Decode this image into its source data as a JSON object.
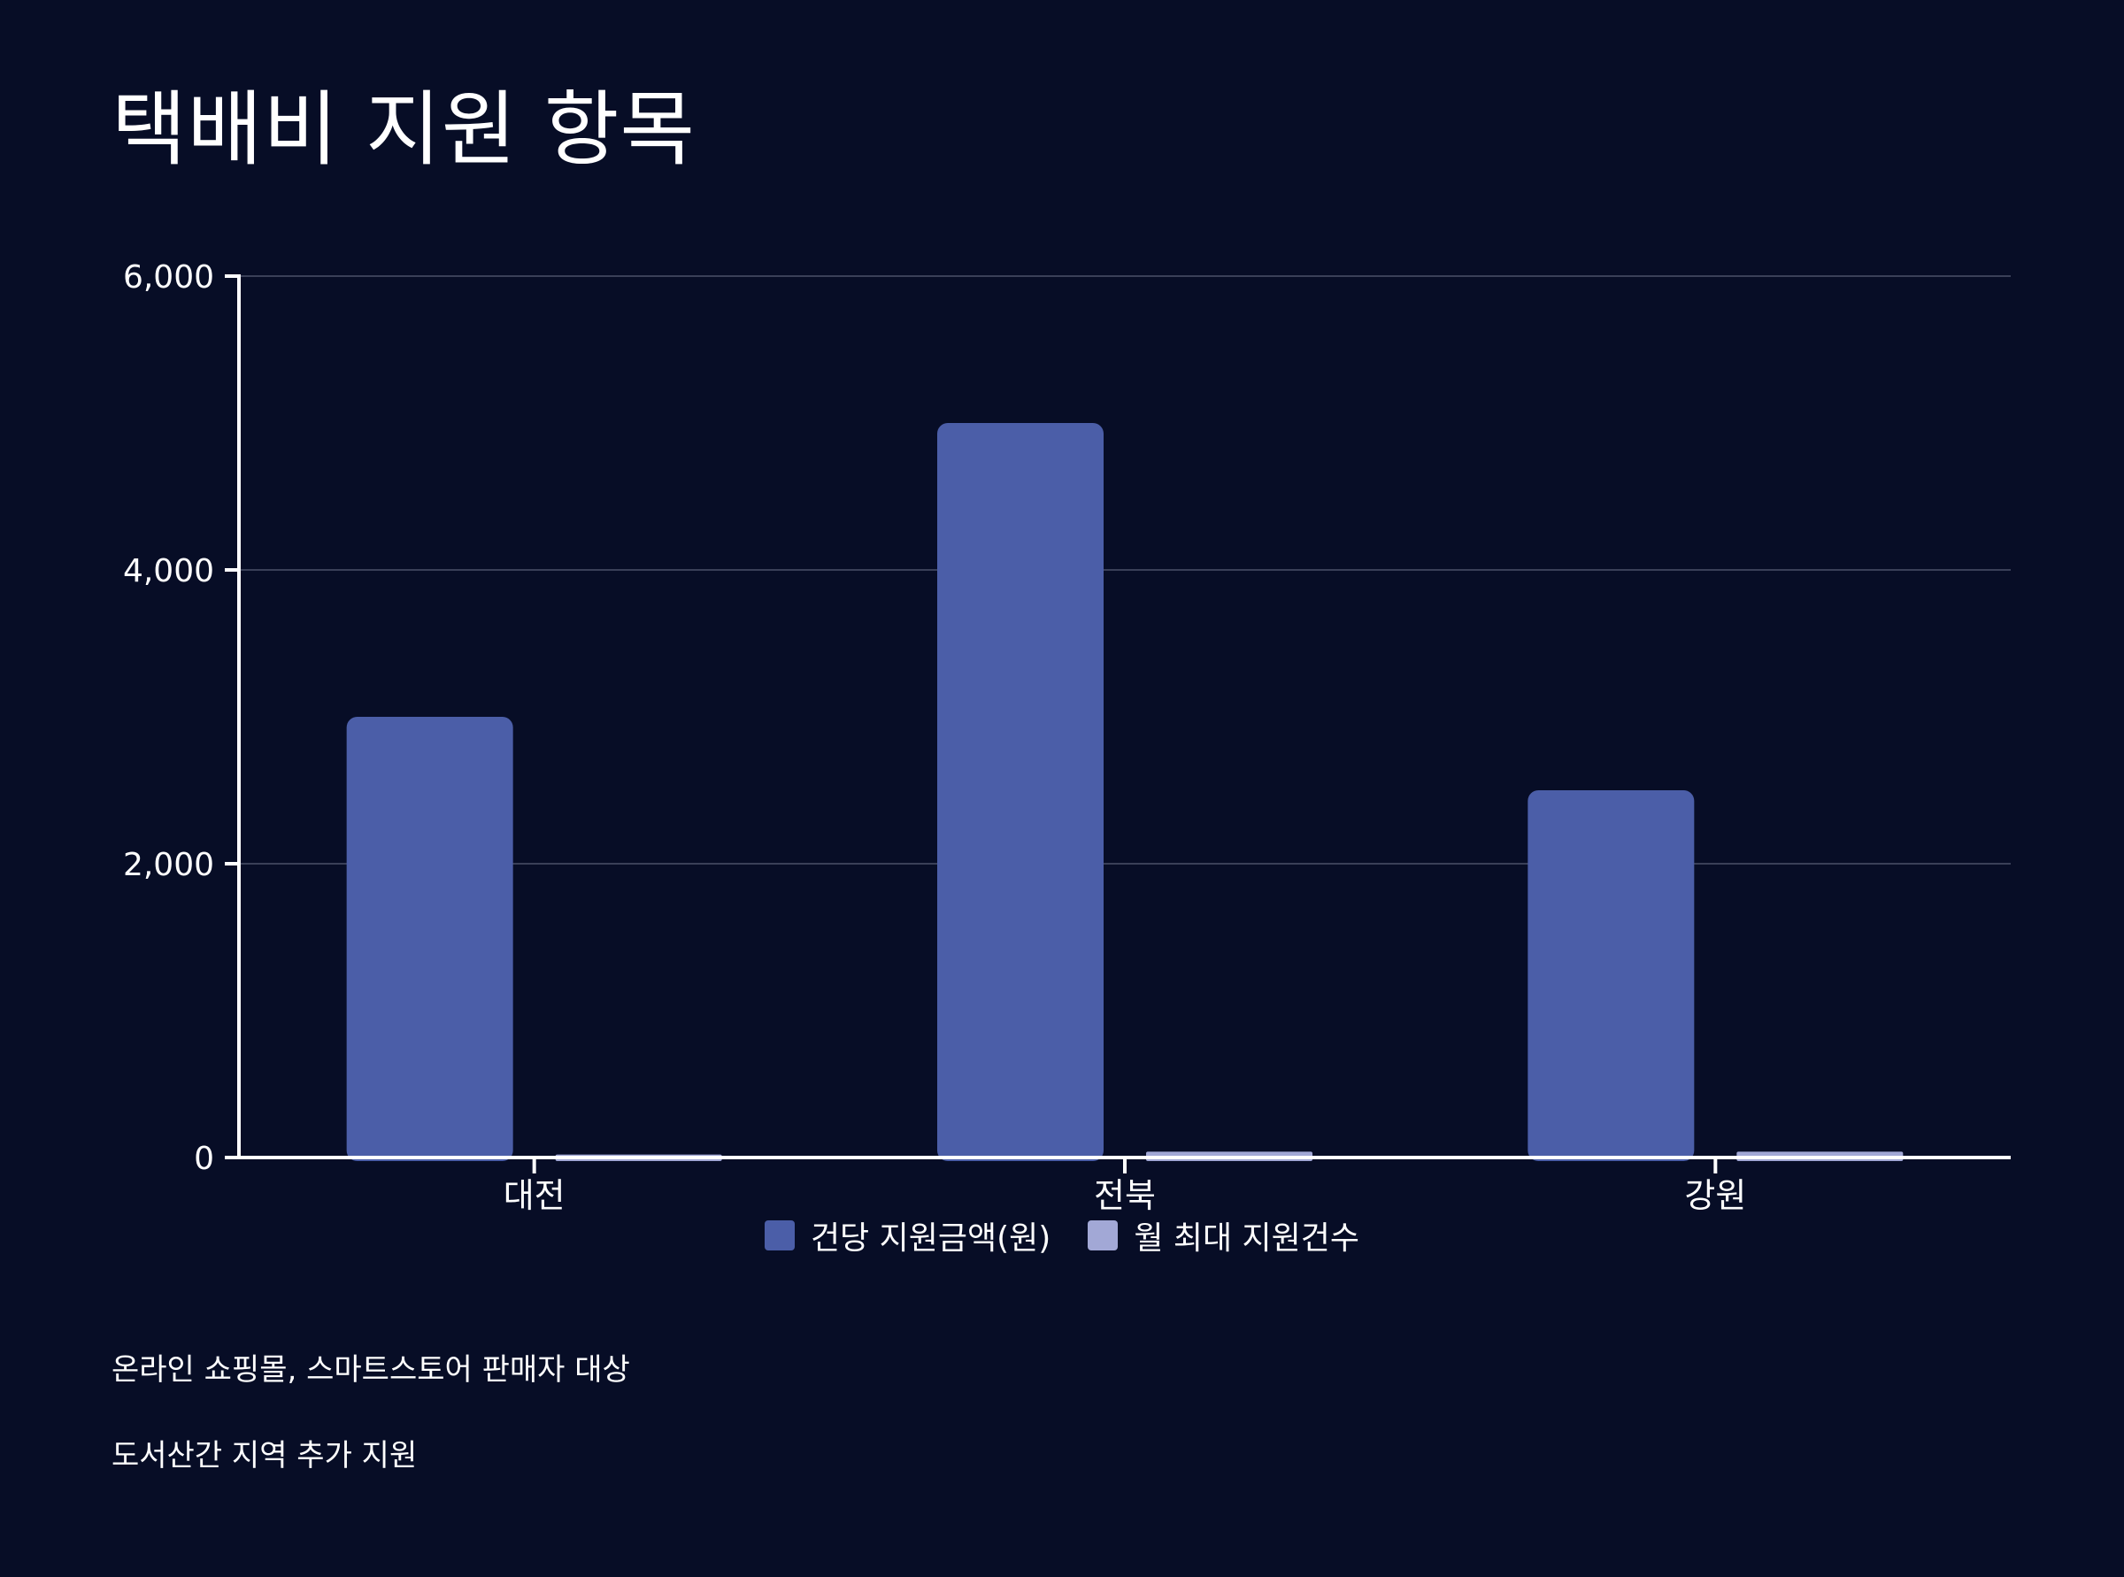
{
  "title": "택배비 지원 항목",
  "colors": {
    "background": "#070d26",
    "series1": "#4b5ea8",
    "series2": "#a2a8d6",
    "grid": "#3a4058",
    "axis": "#ffffff"
  },
  "chart_data": {
    "type": "bar",
    "categories": [
      "대전",
      "전북",
      "강원"
    ],
    "series": [
      {
        "name": "건당 지원금액(원)",
        "values": [
          3000,
          5000,
          2500
        ]
      },
      {
        "name": "월 최대 지원건수",
        "values": [
          20,
          40,
          40
        ]
      }
    ],
    "ylim": [
      0,
      6000
    ],
    "yticks": [
      0,
      2000,
      4000,
      6000
    ],
    "ytick_labels": [
      "0",
      "2,000",
      "4,000",
      "6,000"
    ],
    "grid": true,
    "legend_position": "bottom-center",
    "xlabel": "",
    "ylabel": ""
  },
  "notes": [
    "온라인 쇼핑몰, 스마트스토어 판매자 대상",
    "도서산간 지역 추가 지원"
  ]
}
